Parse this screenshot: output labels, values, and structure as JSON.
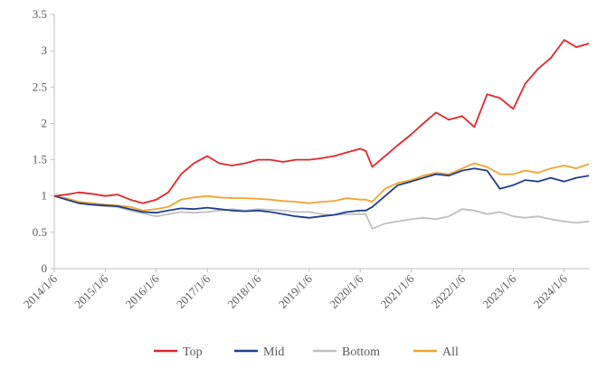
{
  "chart_data": {
    "type": "line",
    "title": "",
    "xlabel": "",
    "ylabel": "",
    "ylim": [
      0,
      3.5
    ],
    "yticks": [
      "0",
      "0.5",
      "1",
      "1.5",
      "2",
      "2.5",
      "3",
      "3.5"
    ],
    "xticks": [
      "2014/1/6",
      "2015/1/6",
      "2016/1/6",
      "2017/1/6",
      "2018/1/6",
      "2019/1/6",
      "2020/1/6",
      "2021/1/6",
      "2022/1/6",
      "2023/1/6",
      "2024/1/6"
    ],
    "grid": false,
    "legend_position": "bottom",
    "x": [
      "2014/1/6",
      "2014/4/1",
      "2014/7/1",
      "2014/10/1",
      "2015/1/6",
      "2015/4/1",
      "2015/7/1",
      "2015/10/1",
      "2016/1/6",
      "2016/4/1",
      "2016/7/1",
      "2016/10/1",
      "2017/1/6",
      "2017/4/1",
      "2017/7/1",
      "2017/10/1",
      "2018/1/6",
      "2018/4/1",
      "2018/7/1",
      "2018/10/1",
      "2019/1/6",
      "2019/4/1",
      "2019/7/1",
      "2019/10/1",
      "2020/1/6",
      "2020/2/15",
      "2020/4/1",
      "2020/7/1",
      "2020/10/1",
      "2021/1/6",
      "2021/4/1",
      "2021/7/1",
      "2021/10/1",
      "2022/1/6",
      "2022/4/1",
      "2022/7/1",
      "2022/10/1",
      "2023/1/6",
      "2023/4/1",
      "2023/7/1",
      "2023/10/1",
      "2024/1/6",
      "2024/4/1",
      "2024/7/1"
    ],
    "series": [
      {
        "name": "Top",
        "color": "#e0272b",
        "values": [
          1.0,
          1.02,
          1.05,
          1.03,
          1.0,
          1.02,
          0.95,
          0.9,
          0.95,
          1.05,
          1.3,
          1.45,
          1.55,
          1.45,
          1.42,
          1.45,
          1.5,
          1.5,
          1.47,
          1.5,
          1.5,
          1.52,
          1.55,
          1.6,
          1.65,
          1.62,
          1.4,
          1.55,
          1.7,
          1.85,
          2.0,
          2.15,
          2.05,
          2.1,
          1.95,
          2.4,
          2.35,
          2.2,
          2.55,
          2.75,
          2.9,
          3.15,
          3.05,
          3.1
        ]
      },
      {
        "name": "Mid",
        "color": "#1f3e8f",
        "values": [
          1.0,
          0.95,
          0.9,
          0.88,
          0.87,
          0.86,
          0.82,
          0.78,
          0.77,
          0.8,
          0.83,
          0.82,
          0.84,
          0.82,
          0.8,
          0.79,
          0.8,
          0.78,
          0.75,
          0.72,
          0.7,
          0.72,
          0.74,
          0.78,
          0.8,
          0.8,
          0.85,
          1.0,
          1.15,
          1.2,
          1.25,
          1.3,
          1.28,
          1.35,
          1.38,
          1.35,
          1.1,
          1.15,
          1.22,
          1.2,
          1.25,
          1.2,
          1.25,
          1.28
        ]
      },
      {
        "name": "Bottom",
        "color": "#bfbfbf",
        "values": [
          1.0,
          0.95,
          0.9,
          0.88,
          0.86,
          0.85,
          0.8,
          0.76,
          0.72,
          0.75,
          0.78,
          0.77,
          0.78,
          0.8,
          0.82,
          0.8,
          0.82,
          0.81,
          0.8,
          0.78,
          0.78,
          0.75,
          0.74,
          0.75,
          0.75,
          0.75,
          0.55,
          0.62,
          0.65,
          0.68,
          0.7,
          0.68,
          0.72,
          0.82,
          0.8,
          0.75,
          0.78,
          0.72,
          0.7,
          0.72,
          0.68,
          0.65,
          0.63,
          0.65
        ]
      },
      {
        "name": "All",
        "color": "#f0a430",
        "values": [
          1.0,
          0.97,
          0.92,
          0.9,
          0.88,
          0.87,
          0.85,
          0.8,
          0.82,
          0.85,
          0.95,
          0.98,
          1.0,
          0.98,
          0.97,
          0.97,
          0.96,
          0.95,
          0.93,
          0.92,
          0.9,
          0.92,
          0.93,
          0.97,
          0.95,
          0.95,
          0.92,
          1.1,
          1.18,
          1.22,
          1.28,
          1.32,
          1.3,
          1.38,
          1.45,
          1.4,
          1.3,
          1.3,
          1.35,
          1.32,
          1.38,
          1.42,
          1.38,
          1.44
        ]
      }
    ]
  }
}
